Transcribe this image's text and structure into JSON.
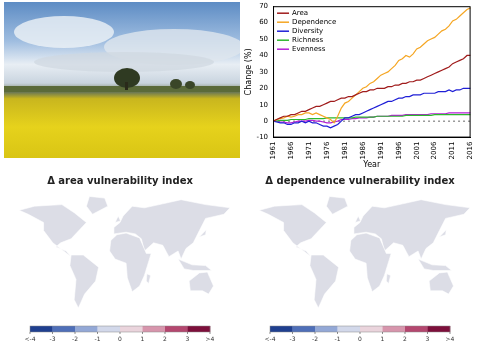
{
  "chart_data": {
    "type": "line",
    "x_label": "Year",
    "y_label": "Change (%)",
    "x": [
      1961,
      1962,
      1963,
      1964,
      1965,
      1966,
      1967,
      1968,
      1969,
      1970,
      1971,
      1972,
      1973,
      1974,
      1975,
      1976,
      1977,
      1978,
      1979,
      1980,
      1981,
      1982,
      1983,
      1984,
      1985,
      1986,
      1987,
      1988,
      1989,
      1990,
      1991,
      1992,
      1993,
      1994,
      1995,
      1996,
      1997,
      1998,
      1999,
      2000,
      2001,
      2002,
      2003,
      2004,
      2005,
      2006,
      2007,
      2008,
      2009,
      2010,
      2011,
      2012,
      2013,
      2014,
      2015,
      2016
    ],
    "xlim": [
      1961,
      2016
    ],
    "xticks": [
      1961,
      1966,
      1971,
      1976,
      1981,
      1986,
      1991,
      1996,
      2001,
      2006,
      2011,
      2016
    ],
    "ylim": [
      -10,
      70
    ],
    "yticks": [
      -10,
      0,
      10,
      20,
      30,
      40,
      50,
      60,
      70
    ],
    "grid": false,
    "legend": "upper left",
    "hline": {
      "value": 0,
      "line_style": "dotted"
    },
    "series": [
      {
        "name": "Area",
        "color": "#a01c1c",
        "values": [
          0,
          1,
          2,
          3,
          3,
          4,
          4,
          5,
          6,
          6,
          7,
          8,
          9,
          9,
          10,
          11,
          12,
          12,
          13,
          14,
          14,
          15,
          15,
          16,
          17,
          18,
          18,
          19,
          19,
          20,
          20,
          20,
          21,
          21,
          22,
          22,
          23,
          23,
          24,
          24,
          25,
          25,
          26,
          27,
          28,
          29,
          30,
          31,
          32,
          33,
          35,
          36,
          37,
          38,
          40,
          40
        ]
      },
      {
        "name": "Dependence",
        "color": "#f5a623",
        "values": [
          0,
          1,
          1.5,
          2,
          3,
          2.5,
          3,
          4,
          4,
          5,
          5,
          4,
          5,
          4,
          3,
          2,
          1,
          -1,
          3,
          8,
          11,
          12,
          14,
          16,
          18,
          20,
          21,
          23,
          24,
          26,
          28,
          29,
          30,
          32,
          34,
          37,
          38,
          40,
          39,
          41,
          44,
          45,
          47,
          49,
          50,
          51,
          53,
          55,
          56,
          58,
          61,
          62,
          64,
          66,
          68,
          69
        ]
      },
      {
        "name": "Diversity",
        "color": "#1f1fd6",
        "values": [
          0,
          -0.5,
          -1,
          -1,
          -2,
          -2,
          -1,
          -1,
          0,
          -1,
          0,
          -1,
          -1,
          -2,
          -3,
          -3,
          -4,
          -3,
          -2,
          0,
          2,
          2,
          3,
          4,
          4,
          5,
          6,
          7,
          8,
          9,
          10,
          11,
          12,
          12,
          13,
          14,
          14,
          15,
          15,
          16,
          16,
          16,
          17,
          17,
          17,
          17,
          18,
          18,
          18,
          19,
          18,
          19,
          19,
          20,
          20,
          20
        ]
      },
      {
        "name": "Richness",
        "color": "#2db82d",
        "values": [
          0,
          0,
          0.5,
          0.5,
          0.5,
          1,
          1,
          1,
          1,
          1,
          1.5,
          1.5,
          1.5,
          1.5,
          1.5,
          2,
          2,
          2,
          2,
          2,
          2,
          2,
          2,
          2.5,
          2.5,
          2.5,
          2.5,
          2.5,
          2.5,
          3,
          3,
          3,
          3,
          3,
          3,
          3,
          3,
          3.5,
          3.5,
          3.5,
          3.5,
          3.5,
          3.5,
          3.5,
          3.5,
          4,
          4,
          4,
          4,
          4,
          4,
          4,
          4,
          4,
          4,
          4
        ]
      },
      {
        "name": "Evenness",
        "color": "#b41fd6",
        "values": [
          0,
          0,
          -0.5,
          -0.5,
          -1,
          -1,
          -0.5,
          0,
          0,
          0,
          0.5,
          0.5,
          0,
          0,
          -0.5,
          -1,
          -1,
          -0.5,
          0,
          1,
          1,
          1,
          1.5,
          1.5,
          2,
          2,
          2,
          2.5,
          2.5,
          3,
          3,
          3,
          3,
          3.5,
          3.5,
          3.5,
          3.5,
          4,
          4,
          4,
          4,
          4,
          4,
          4,
          4.5,
          4.5,
          4.5,
          4.5,
          4.5,
          5,
          5,
          5,
          5,
          5,
          5,
          5
        ]
      }
    ]
  },
  "maps": [
    {
      "title": "Δ area vulnerability index",
      "colorbar": {
        "range": [
          -4,
          4
        ],
        "ticks": [
          {
            "value": -4,
            "label": "<-4"
          },
          -3,
          -2,
          -1,
          0,
          1,
          2,
          3,
          {
            "value": 4,
            "label": ">4"
          }
        ],
        "colors": [
          "#1f3f8f",
          "#4f6fb8",
          "#93a8d6",
          "#d2d8ea",
          "#ead4dc",
          "#d795ac",
          "#b4476f",
          "#7d0f3b"
        ]
      }
    },
    {
      "title": "Δ dependence vulnerability index",
      "colorbar": {
        "range": [
          -4,
          4
        ],
        "ticks": [
          {
            "value": -4,
            "label": "<-4"
          },
          -3,
          -2,
          -1,
          0,
          1,
          2,
          3,
          {
            "value": 4,
            "label": ">4"
          }
        ],
        "colors": [
          "#1f3f8f",
          "#4f6fb8",
          "#93a8d6",
          "#d2d8ea",
          "#ead4dc",
          "#d795ac",
          "#b4476f",
          "#7d0f3b"
        ]
      }
    }
  ]
}
